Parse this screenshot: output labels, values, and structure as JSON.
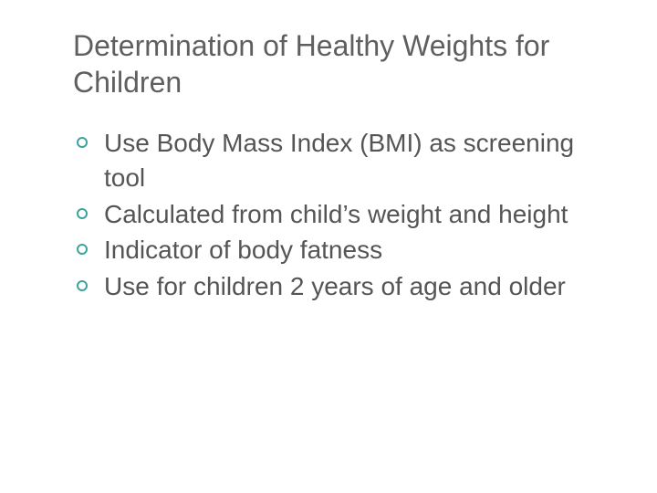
{
  "slide": {
    "title": "Determination of Healthy Weights for Children",
    "title_color": "#5f5f5f",
    "title_fontsize": 32,
    "body_color": "#555555",
    "body_fontsize": 28,
    "bullet_ring_color": "#3da39a",
    "background_color": "#ffffff",
    "bullets": [
      "Use Body Mass Index (BMI) as screening tool",
      "Calculated from child’s weight and height",
      "Indicator of body fatness",
      "Use for children 2 years of age and older"
    ]
  }
}
